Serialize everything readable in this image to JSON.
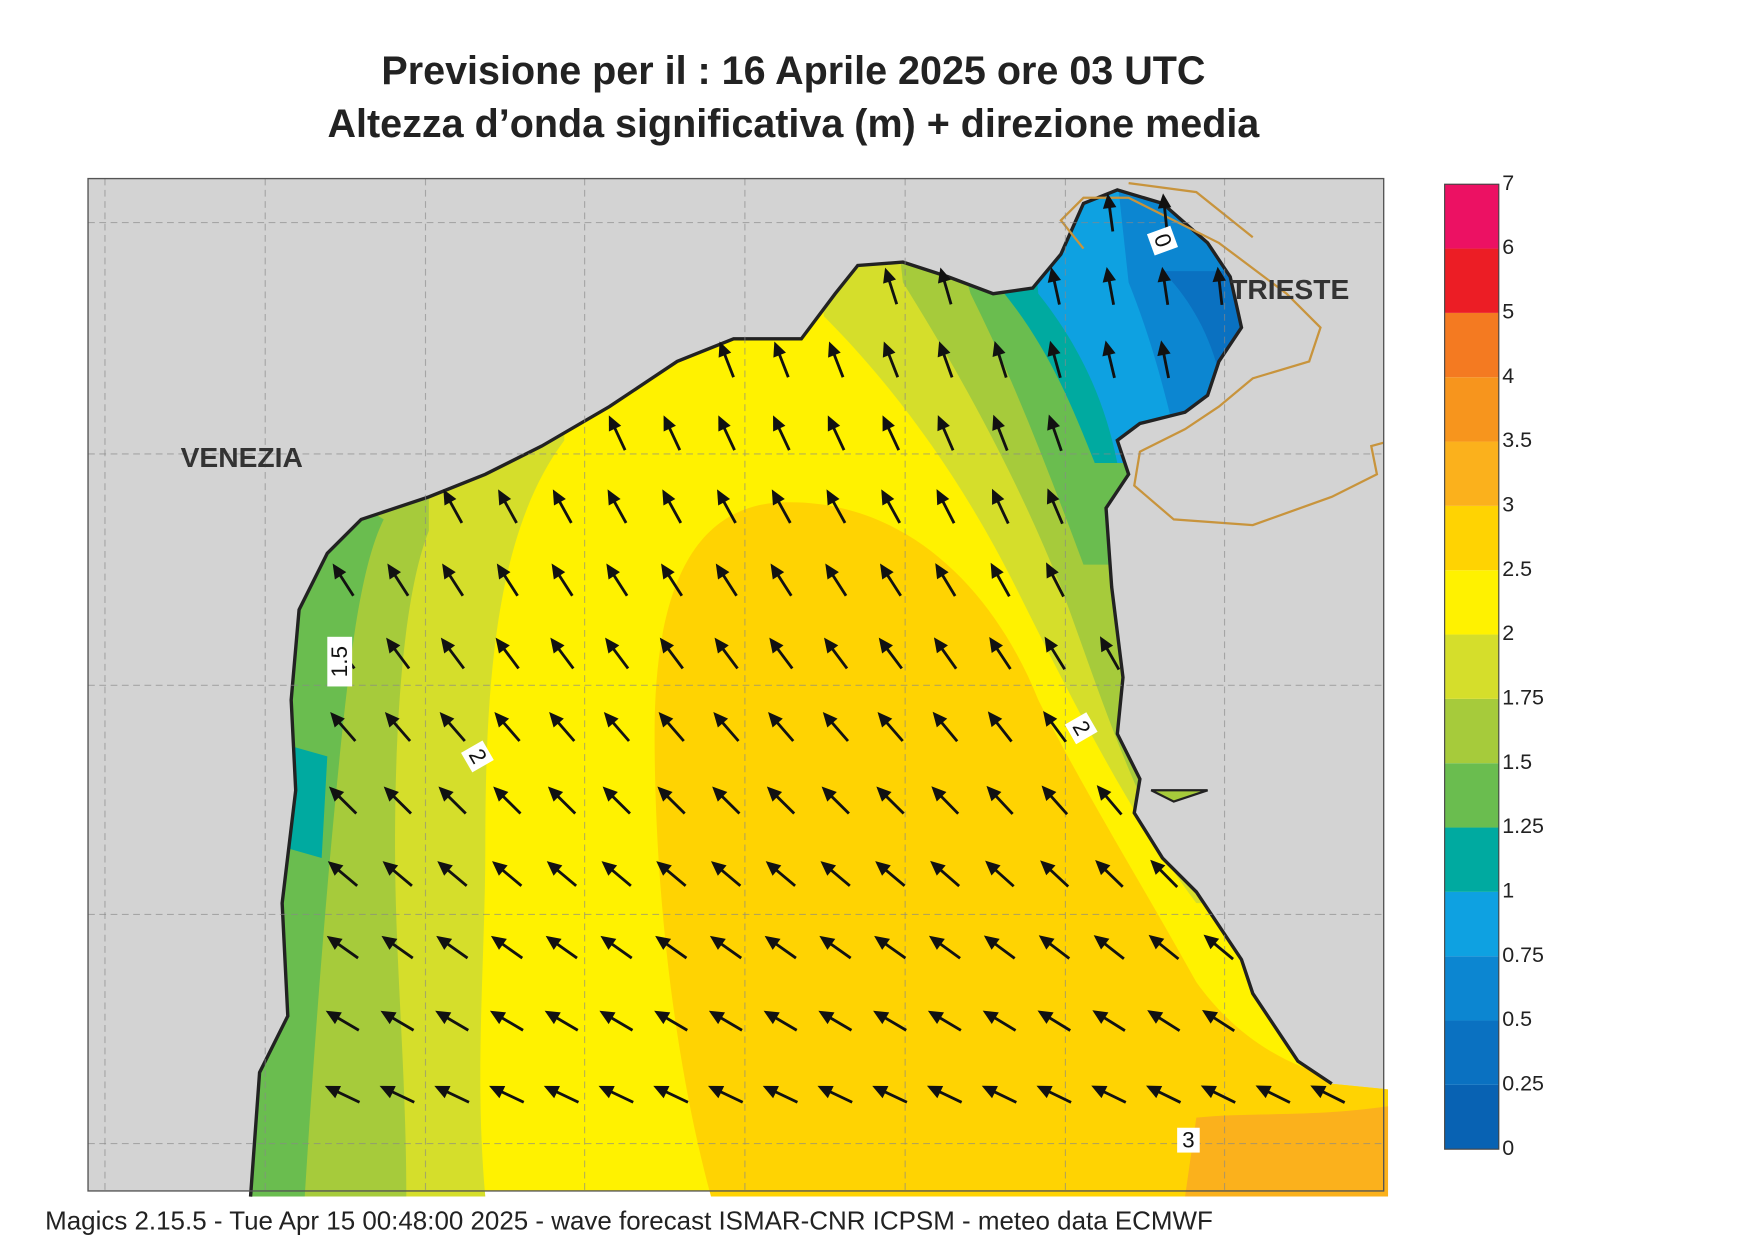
{
  "header": {
    "title_line1": "Previsione per il  :  16   Aprile  2025   ore 03 UTC",
    "title_line2": "Altezza d’onda significativa (m) + direzione media"
  },
  "map": {
    "place_labels": [
      "VENEZIA",
      "TRIESTE"
    ],
    "contour_labels": [
      "0",
      "1.5",
      "2",
      "2",
      "3"
    ]
  },
  "colorbar": {
    "levels": [
      0,
      0.25,
      0.5,
      0.75,
      1,
      1.25,
      1.5,
      1.75,
      2,
      2.5,
      3,
      3.5,
      4,
      5,
      6,
      7
    ],
    "colors": [
      "#0862b3",
      "#0a71c1",
      "#0c86d1",
      "#0ea1e1",
      "#00aaa0",
      "#6abd4f",
      "#a6cb3b",
      "#d5de2b",
      "#fff200",
      "#ffd302",
      "#fbb11c",
      "#f7951d",
      "#f47a21",
      "#ec1d25",
      "#ec1163"
    ]
  },
  "footer": "Magics 2.15.5 - Tue Apr 15 00:48:00 2025 - wave forecast  ISMAR-CNR  ICPSM - meteo data   ECMWF"
}
